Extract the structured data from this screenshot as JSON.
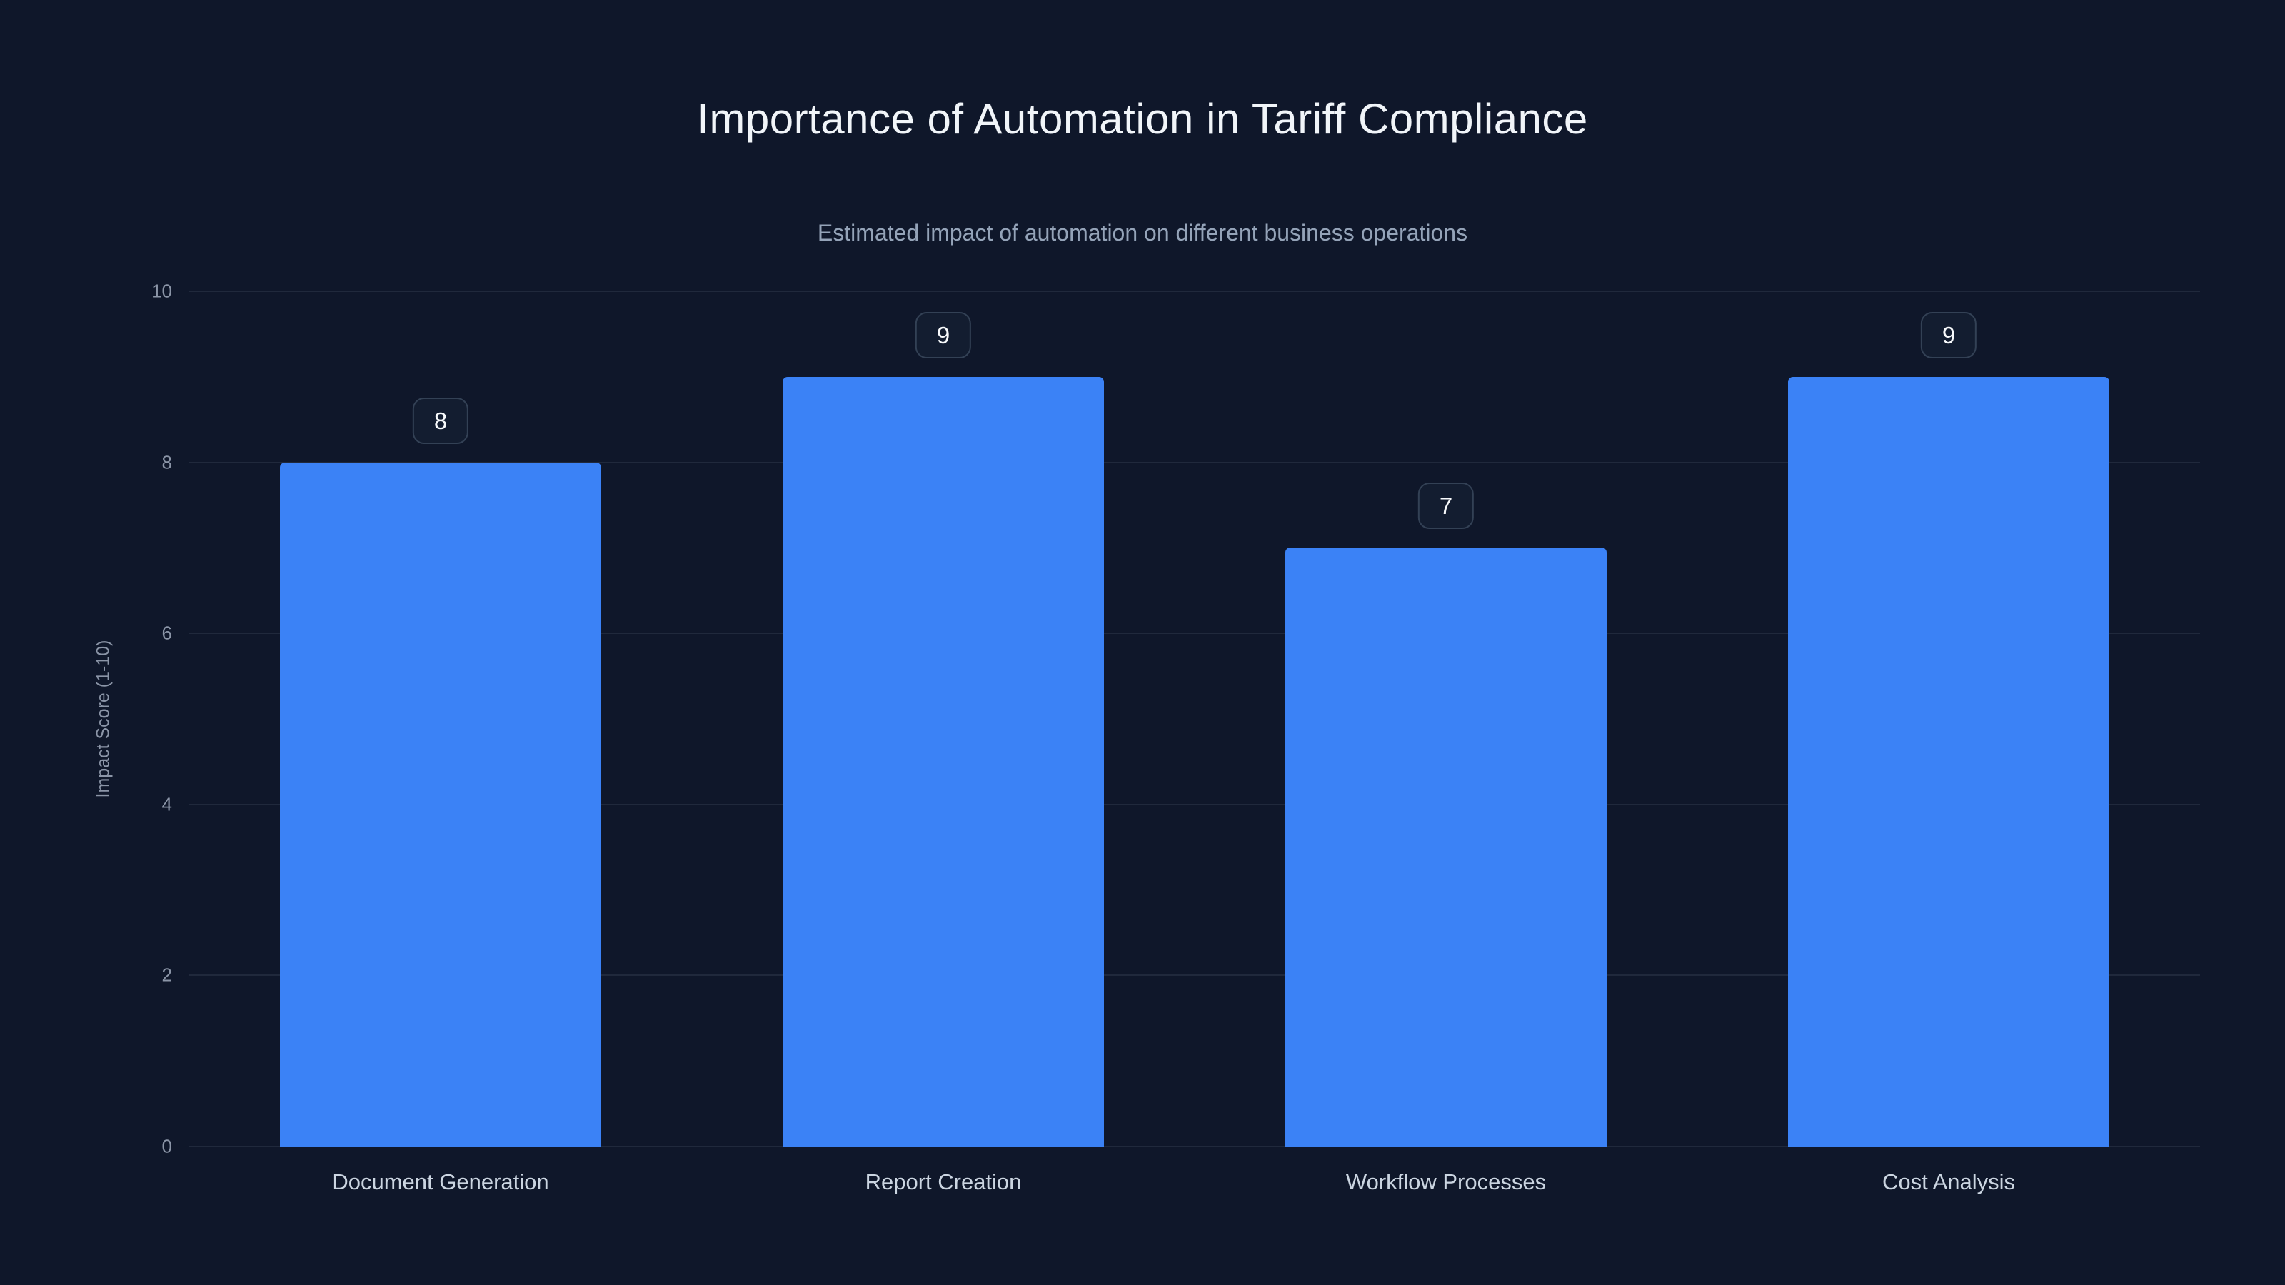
{
  "chart_data": {
    "type": "bar",
    "title": "Importance of Automation in Tariff Compliance",
    "subtitle": "Estimated impact of automation on different business operations",
    "categories": [
      "Document Generation",
      "Report Creation",
      "Workflow Processes",
      "Cost Analysis"
    ],
    "values": [
      8,
      9,
      7,
      9
    ],
    "xlabel": "",
    "ylabel": "Impact Score (1-10)",
    "ylim": [
      0,
      10
    ],
    "yticks": [
      0,
      2,
      4,
      6,
      8,
      10
    ],
    "grid": true,
    "legend": false,
    "value_labels_shown": true,
    "colors": {
      "background": "#0f172a",
      "bar": "#3b82f6",
      "gridline": "rgba(148,163,184,0.13)",
      "title_text": "#f1f5f9",
      "subtitle_text": "#94a3b8",
      "tick_text": "#8b95a7",
      "category_text": "#cbd5e1",
      "badge_border": "#334155",
      "badge_text": "#f8fafc"
    }
  }
}
